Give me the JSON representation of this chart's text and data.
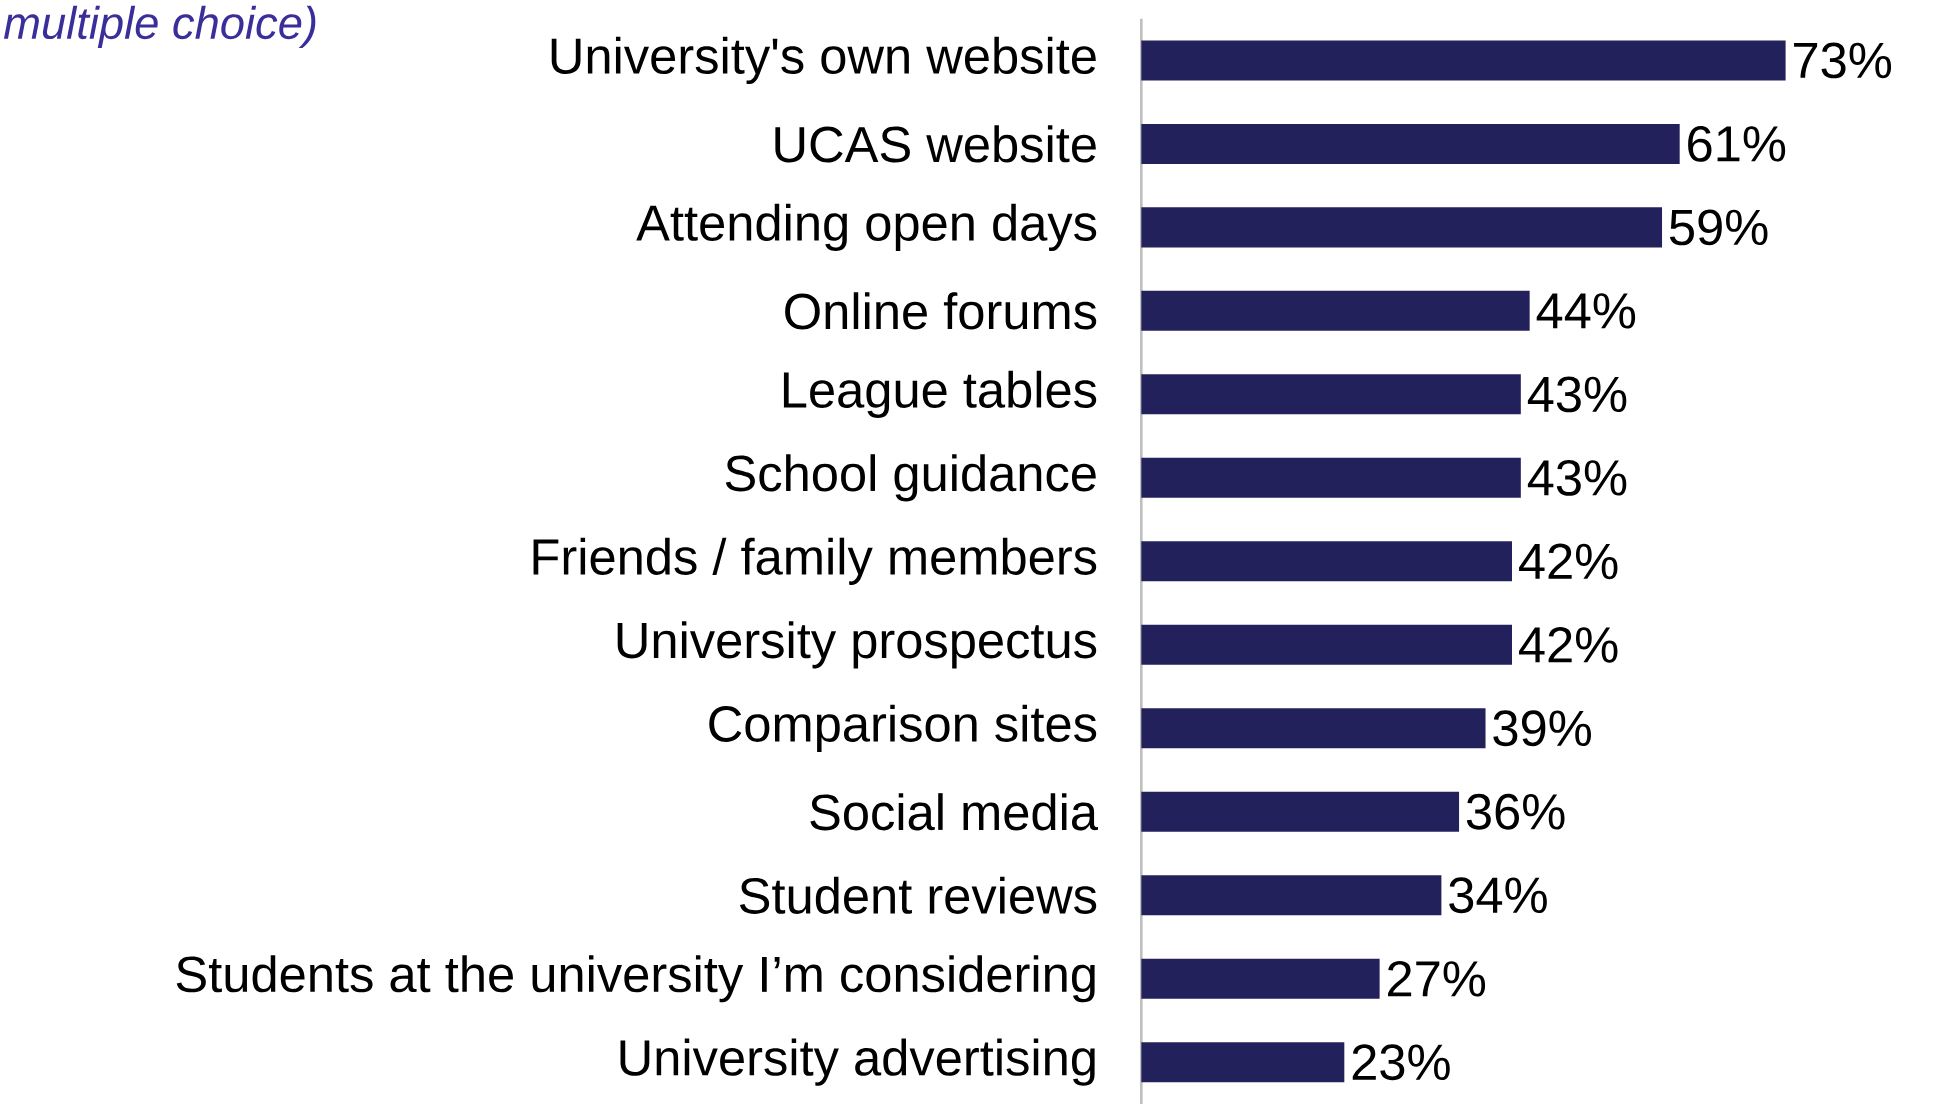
{
  "chart_data": {
    "type": "bar",
    "orientation": "horizontal",
    "subtitle": "multiple choice)",
    "categories": [
      "University's own website",
      "UCAS website",
      "Attending open days",
      "Online forums",
      "League tables",
      "School guidance",
      "Friends / family members",
      "University prospectus",
      "Comparison sites",
      "Social media",
      "Student reviews",
      "Students at the university I’m considering",
      "University advertising"
    ],
    "values": [
      73,
      61,
      59,
      44,
      43,
      43,
      42,
      42,
      39,
      36,
      34,
      27,
      23
    ],
    "value_labels": [
      "73%",
      "61%",
      "59%",
      "44%",
      "43%",
      "43%",
      "42%",
      "42%",
      "39%",
      "36%",
      "34%",
      "27%",
      "23%"
    ],
    "color": "#23215C"
  }
}
